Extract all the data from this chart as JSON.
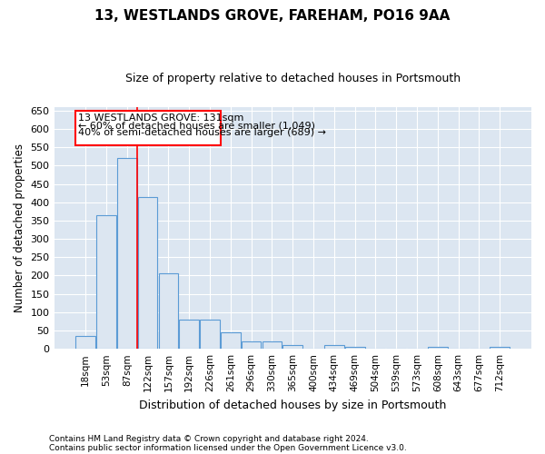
{
  "title": "13, WESTLANDS GROVE, FAREHAM, PO16 9AA",
  "subtitle": "Size of property relative to detached houses in Portsmouth",
  "xlabel": "Distribution of detached houses by size in Portsmouth",
  "ylabel": "Number of detached properties",
  "footer_line1": "Contains HM Land Registry data © Crown copyright and database right 2024.",
  "footer_line2": "Contains public sector information licensed under the Open Government Licence v3.0.",
  "bar_edge_color": "#5b9bd5",
  "bar_face_color": "#dce6f1",
  "background_color": "#dce6f1",
  "grid_color": "#ffffff",
  "x_labels": [
    "18sqm",
    "53sqm",
    "87sqm",
    "122sqm",
    "157sqm",
    "192sqm",
    "226sqm",
    "261sqm",
    "296sqm",
    "330sqm",
    "365sqm",
    "400sqm",
    "434sqm",
    "469sqm",
    "504sqm",
    "539sqm",
    "573sqm",
    "608sqm",
    "643sqm",
    "677sqm",
    "712sqm"
  ],
  "bar_values": [
    35,
    365,
    520,
    415,
    205,
    80,
    80,
    45,
    20,
    20,
    10,
    0,
    10,
    5,
    0,
    0,
    0,
    5,
    0,
    0,
    5
  ],
  "ylim": [
    0,
    660
  ],
  "yticks": [
    0,
    50,
    100,
    150,
    200,
    250,
    300,
    350,
    400,
    450,
    500,
    550,
    600,
    650
  ],
  "annotation_text_line1": "13 WESTLANDS GROVE: 131sqm",
  "annotation_text_line2": "← 60% of detached houses are smaller (1,049)",
  "annotation_text_line3": "40% of semi-detached houses are larger (689) →"
}
